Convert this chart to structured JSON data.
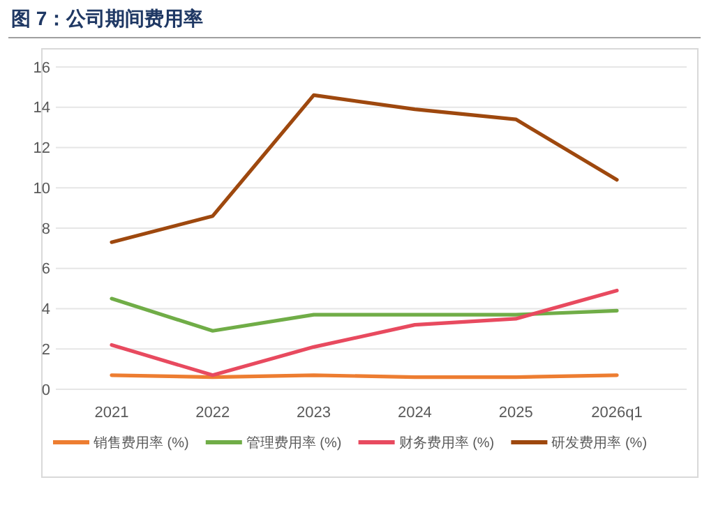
{
  "chart_data": {
    "type": "line",
    "title": "图 7：公司期间费用率",
    "categories": [
      "2021",
      "2022",
      "2023",
      "2024",
      "2025",
      "2026q1"
    ],
    "series": [
      {
        "name": "销售费用率 (%)",
        "color": "#ed7d31",
        "values": [
          0.7,
          0.6,
          0.7,
          0.6,
          0.6,
          0.7
        ]
      },
      {
        "name": "管理费用率 (%)",
        "color": "#70ad47",
        "values": [
          4.5,
          2.9,
          3.7,
          3.7,
          3.7,
          3.9
        ]
      },
      {
        "name": "财务费用率 (%)",
        "color": "#e84a5f",
        "values": [
          2.2,
          0.7,
          2.1,
          3.2,
          3.5,
          4.9
        ]
      },
      {
        "name": "研发费用率 (%)",
        "color": "#9e480e",
        "values": [
          7.3,
          8.6,
          14.6,
          13.9,
          13.4,
          10.4
        ]
      }
    ],
    "ylim": [
      0,
      16
    ],
    "yticks": [
      0,
      2,
      4,
      6,
      8,
      10,
      12,
      14,
      16
    ],
    "grid": "y",
    "legend": "bottom",
    "marker": "none",
    "line_style": "solid"
  }
}
